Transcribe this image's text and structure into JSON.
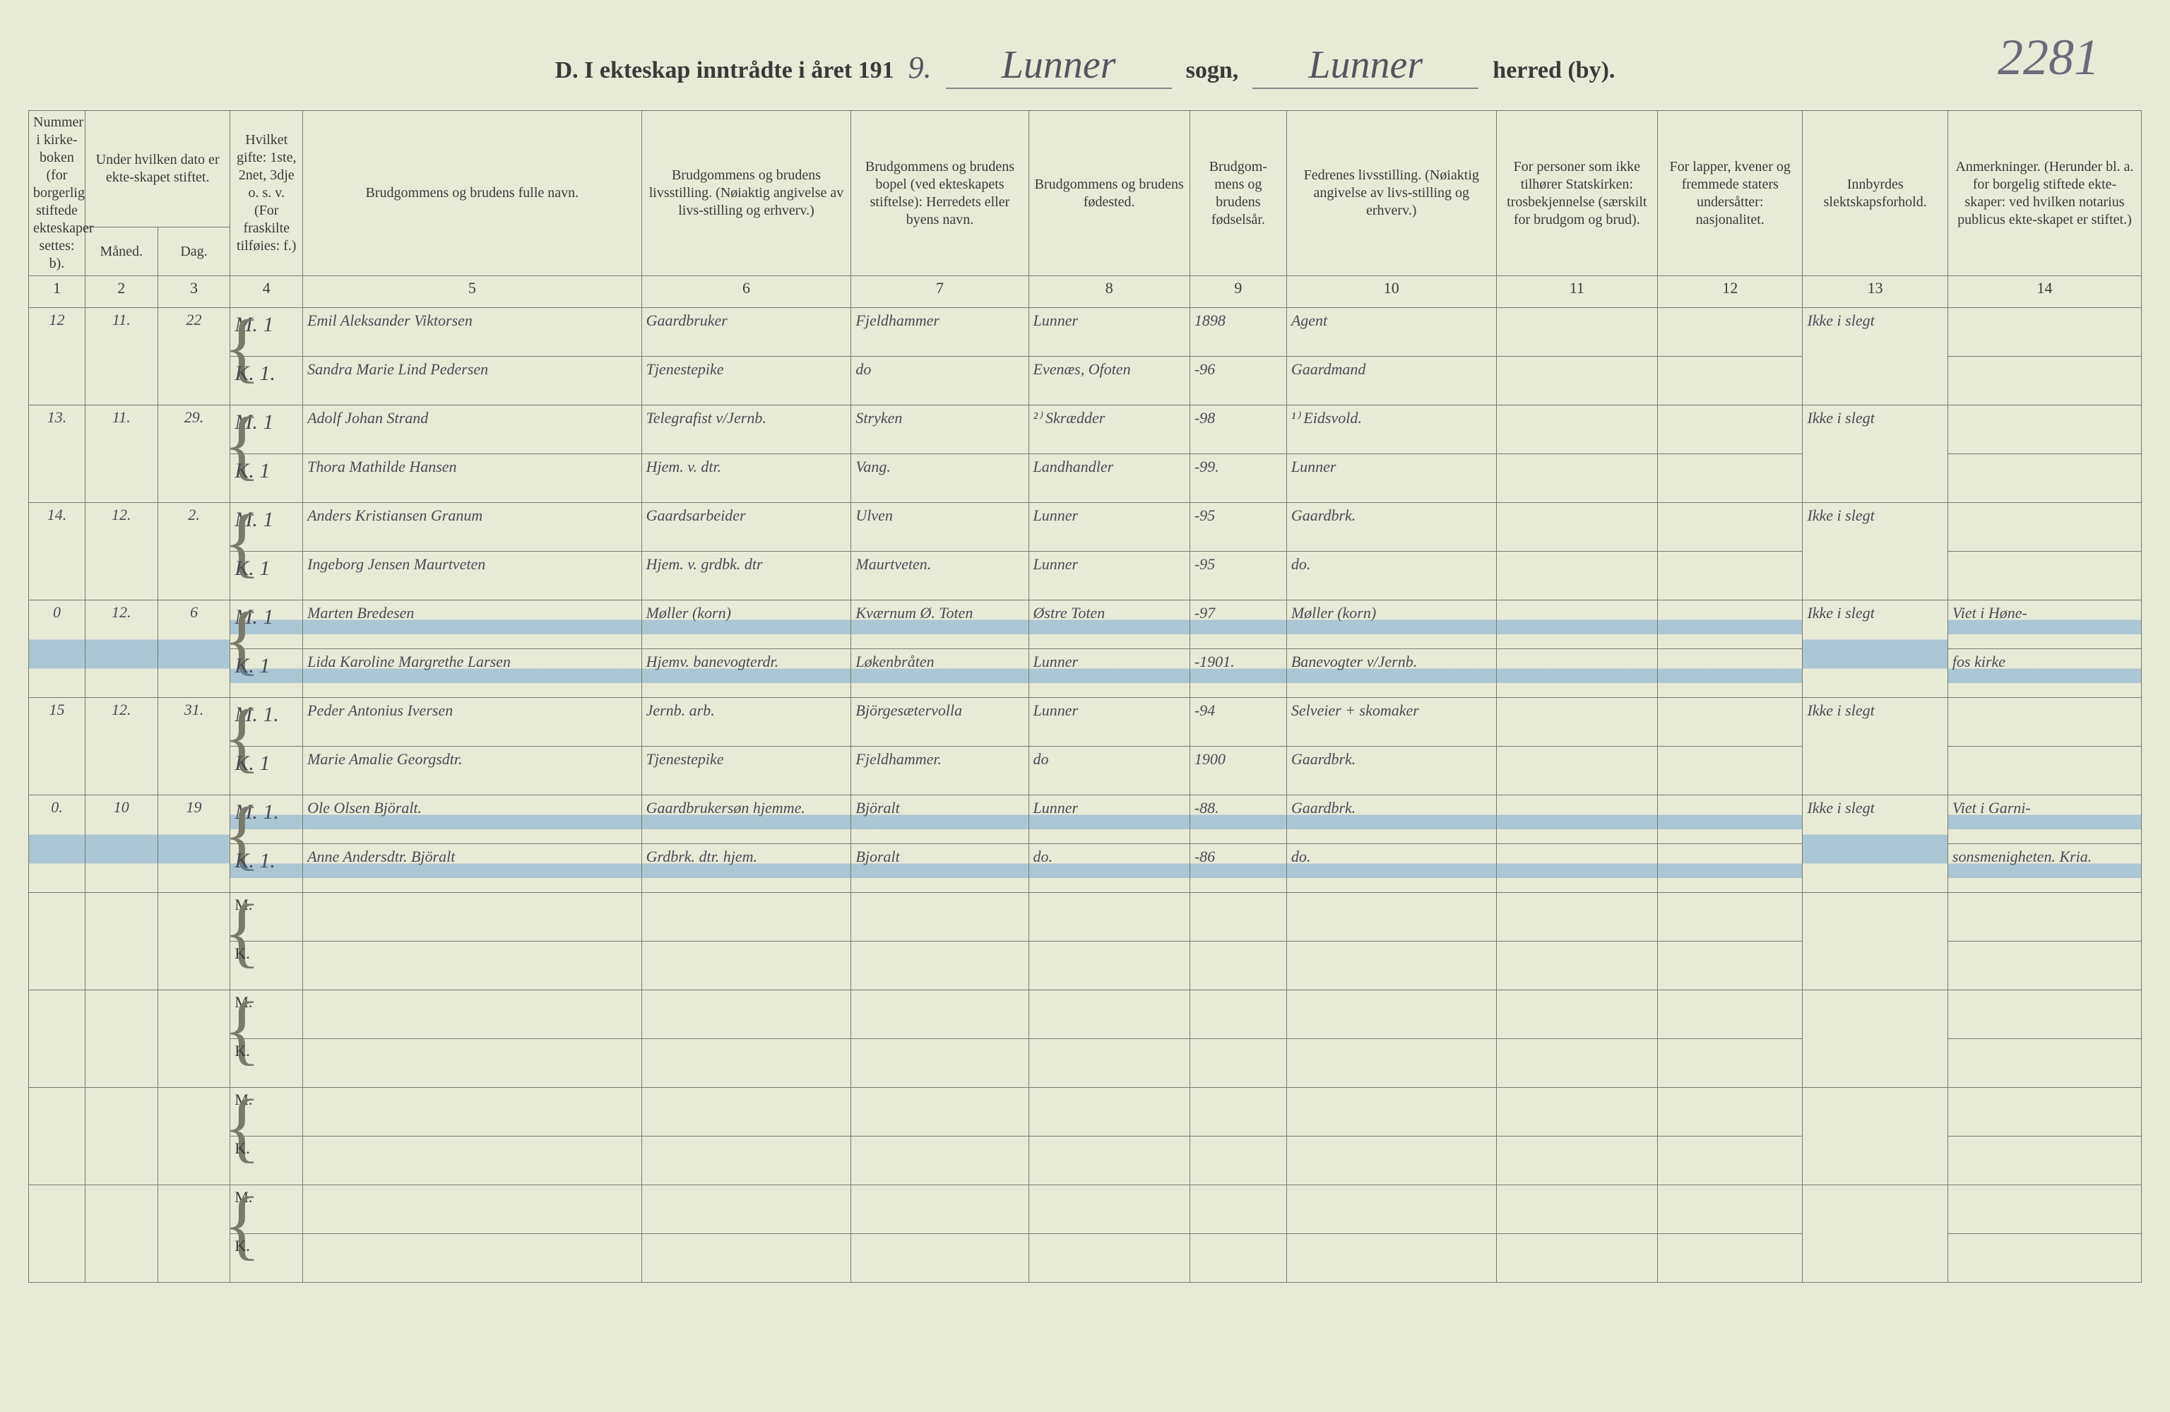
{
  "page_number_handwritten": "2281",
  "title": {
    "prefix": "D.  I ekteskap inntrådte i året 191",
    "year_digit": "9.",
    "sogn_value": "Lunner",
    "sogn_label": "sogn,",
    "herred_value": "Lunner",
    "herred_label": "herred (by)."
  },
  "headers": {
    "c1": "Nummer i kirke-boken (for borgerlig stiftede ekteskaper settes: b).",
    "c2_top": "Under hvilken dato er ekte-skapet stiftet.",
    "c2a": "Måned.",
    "c2b": "Dag.",
    "c4": "Hvilket gifte: 1ste, 2net, 3dje o. s. v. (For fraskilte tilføies: f.)",
    "c5": "Brudgommens og brudens fulle navn.",
    "c6": "Brudgommens og brudens livsstilling. (Nøiaktig angivelse av livs-stilling og erhverv.)",
    "c7": "Brudgommens og brudens bopel (ved ekteskapets stiftelse): Herredets eller byens navn.",
    "c8": "Brudgommens og brudens fødested.",
    "c9": "Brudgom-mens og brudens fødselsår.",
    "c10": "Fedrenes livsstilling. (Nøiaktig angivelse av livs-stilling og erhverv.)",
    "c11": "For personer som ikke tilhører Statskirken: trosbekjennelse (særskilt for brudgom og brud).",
    "c12": "For lapper, kvener og fremmede staters undersåtter: nasjonalitet.",
    "c13": "Innbyrdes slektskapsforhold.",
    "c14": "Anmerkninger. (Herunder bl. a. for borgelig stiftede ekte-skaper: ved hvilken notarius publicus ekte-skapet er stiftet.)"
  },
  "colnums": [
    "1",
    "2",
    "3",
    "4",
    "5",
    "6",
    "7",
    "8",
    "9",
    "10",
    "11",
    "12",
    "13",
    "14"
  ],
  "mk": {
    "m": "M.",
    "k": "K."
  },
  "rows": [
    {
      "num": "12",
      "maned": "11.",
      "dag": "22",
      "m": {
        "gifte": "1",
        "navn": "Emil Aleksander Viktorsen",
        "stilling": "Gaardbruker",
        "bopel": "Fjeldhammer",
        "fodested": "Lunner",
        "aar": "1898",
        "fedre": "Agent",
        "c13": "Ikke i slegt"
      },
      "k": {
        "gifte": "1.",
        "navn": "Sandra Marie Lind Pedersen",
        "stilling": "Tjenestepike",
        "bopel": "do",
        "fodested": "Evenæs, Ofoten",
        "aar": "-96",
        "fedre": "Gaardmand"
      }
    },
    {
      "num": "13.",
      "maned": "11.",
      "dag": "29.",
      "m": {
        "gifte": "1",
        "navn": "Adolf Johan Strand",
        "stilling": "Telegrafist v/Jernb.",
        "bopel": "Stryken",
        "fodested": "²⁾ Skrædder",
        "aar": "-98",
        "fedre": "¹⁾ Eidsvold.",
        "c13": "Ikke i slegt"
      },
      "k": {
        "gifte": "1",
        "navn": "Thora Mathilde Hansen",
        "stilling": "Hjem. v. dtr.",
        "bopel": "Vang.",
        "fodested": "Landhandler",
        "aar": "-99.",
        "fedre": "Lunner"
      }
    },
    {
      "num": "14.",
      "maned": "12.",
      "dag": "2.",
      "m": {
        "gifte": "1",
        "navn": "Anders Kristiansen Granum",
        "stilling": "Gaardsarbeider",
        "bopel": "Ulven",
        "fodested": "Lunner",
        "aar": "-95",
        "fedre": "Gaardbrk.",
        "c13": "Ikke i slegt"
      },
      "k": {
        "gifte": "1",
        "navn": "Ingeborg Jensen Maurtveten",
        "stilling": "Hjem. v. grdbk. dtr",
        "bopel": "Maurtveten.",
        "fodested": "Lunner",
        "aar": "-95",
        "fedre": "do."
      }
    },
    {
      "num": "0",
      "maned": "12.",
      "dag": "6",
      "highlight": true,
      "m": {
        "gifte": "1",
        "navn": "Marten Bredesen",
        "stilling": "Møller (korn)",
        "bopel": "Kværnum Ø. Toten",
        "fodested": "Østre Toten",
        "aar": "-97",
        "fedre": "Møller (korn)",
        "c13": "Ikke i slegt",
        "c14": "Viet i Høne-"
      },
      "k": {
        "gifte": "1",
        "navn": "Lida Karoline Margrethe Larsen",
        "stilling": "Hjemv. banevogterdr.",
        "bopel": "Løkenbråten",
        "fodested": "Lunner",
        "aar": "-1901.",
        "fedre": "Banevogter v/Jernb.",
        "c14": "fos kirke"
      }
    },
    {
      "num": "15",
      "maned": "12.",
      "dag": "31.",
      "m": {
        "gifte": "1.",
        "navn": "Peder Antonius Iversen",
        "stilling": "Jernb. arb.",
        "bopel": "Björgesætervolla",
        "fodested": "Lunner",
        "aar": "-94",
        "fedre": "Selveier + skomaker",
        "c13": "Ikke i slegt"
      },
      "k": {
        "gifte": "1",
        "navn": "Marie Amalie Georgsdtr.",
        "stilling": "Tjenestepike",
        "bopel": "Fjeldhammer.",
        "fodested": "do",
        "aar": "1900",
        "fedre": "Gaardbrk."
      }
    },
    {
      "num": "0.",
      "maned": "10",
      "dag": "19",
      "highlight": true,
      "m": {
        "gifte": "1.",
        "navn": "Ole Olsen Björalt.",
        "stilling": "Gaardbrukersøn hjemme.",
        "bopel": "Björalt",
        "fodested": "Lunner",
        "aar": "-88.",
        "fedre": "Gaardbrk.",
        "c13": "Ikke i slegt",
        "c14": "Viet i Garni-"
      },
      "k": {
        "gifte": "1.",
        "navn": "Anne Andersdtr. Björalt",
        "stilling": "Grdbrk. dtr. hjem.",
        "bopel": "Bjoralt",
        "fodested": "do.",
        "aar": "-86",
        "fedre": "do.",
        "c14": "sonsmenigheten. Kria."
      }
    }
  ],
  "empty_pairs": 4,
  "colors": {
    "paper": "#e8ead8",
    "ink_printed": "#3a3a3a",
    "ink_hand": "#4a4a55",
    "rule": "#7a7a6a",
    "highlight": "rgba(60,130,200,0.35)"
  }
}
